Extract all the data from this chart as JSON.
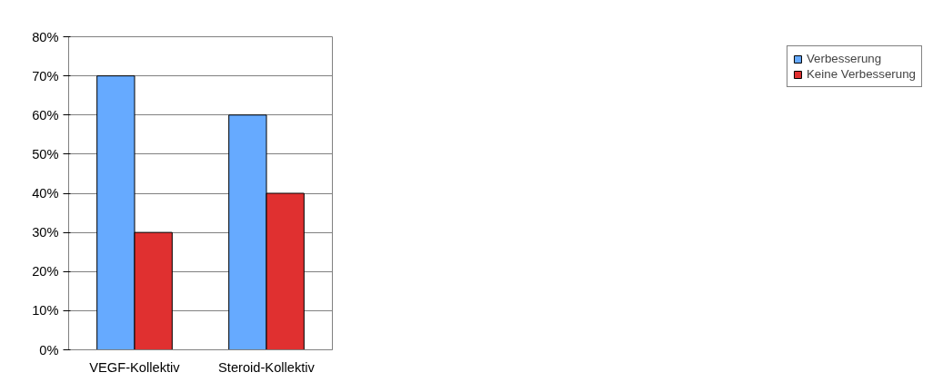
{
  "chart_data": {
    "type": "bar",
    "categories": [
      "VEGF-Kollektiv",
      "Steroid-Kollektiv"
    ],
    "series": [
      {
        "name": "Verbesserung",
        "color": "#66aaff",
        "values": [
          70,
          60
        ]
      },
      {
        "name": "Keine Verbesserung",
        "color": "#e03030",
        "values": [
          30,
          40
        ]
      }
    ],
    "ylim": [
      0,
      80
    ],
    "yticks": [
      {
        "value": 0,
        "label": "0%"
      },
      {
        "value": 10,
        "label": "10%"
      },
      {
        "value": 20,
        "label": "20%"
      },
      {
        "value": 30,
        "label": "30%"
      },
      {
        "value": 40,
        "label": "40%"
      },
      {
        "value": 50,
        "label": "50%"
      },
      {
        "value": 60,
        "label": "60%"
      },
      {
        "value": 70,
        "label": "70%"
      },
      {
        "value": 80,
        "label": "80%"
      }
    ],
    "grid": "y",
    "legend": "right"
  }
}
